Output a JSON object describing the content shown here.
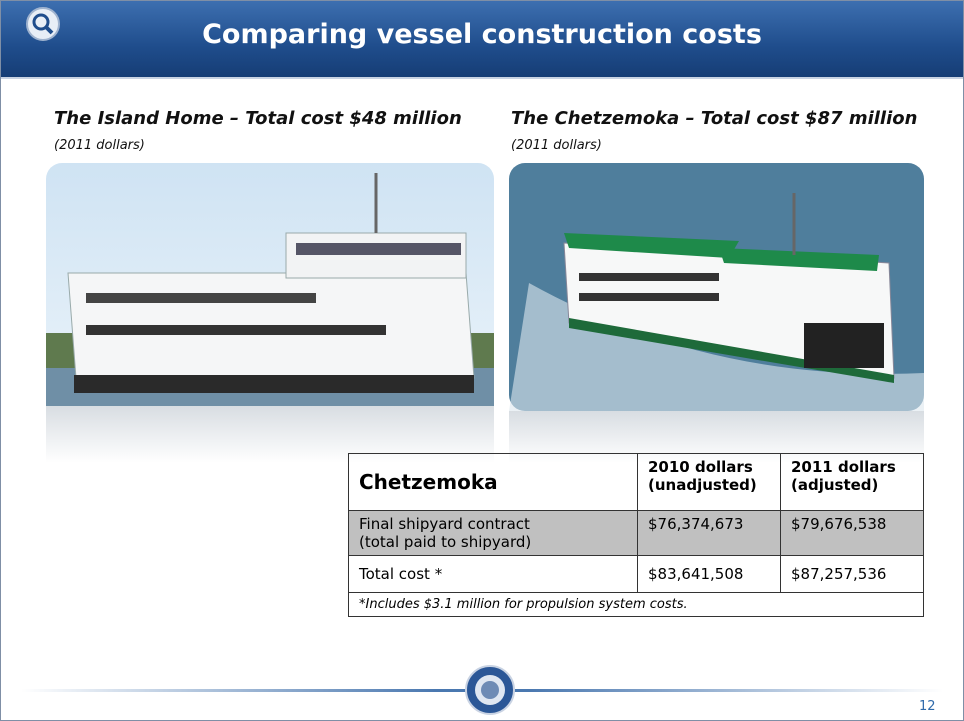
{
  "header": {
    "title": "Comparing vessel construction costs"
  },
  "left": {
    "caption": "The Island Home – Total cost $48 million",
    "note": "(2011 dollars)"
  },
  "right": {
    "caption": "The Chetzemoka – Total cost $87 million",
    "note": "(2011 dollars)"
  },
  "table": {
    "header": [
      "Chetzemoka",
      "2010 dollars (unadjusted)",
      "2011 dollars (adjusted)"
    ],
    "rows": [
      [
        "Final shipyard contract (total paid to shipyard)",
        "$76,374,673",
        "$79,676,538"
      ],
      [
        "Total cost *",
        "$83,641,508",
        "$87,257,536"
      ]
    ],
    "footnote": "*Includes $3.1 million for propulsion system costs."
  },
  "footer": {
    "page_number": "12"
  }
}
